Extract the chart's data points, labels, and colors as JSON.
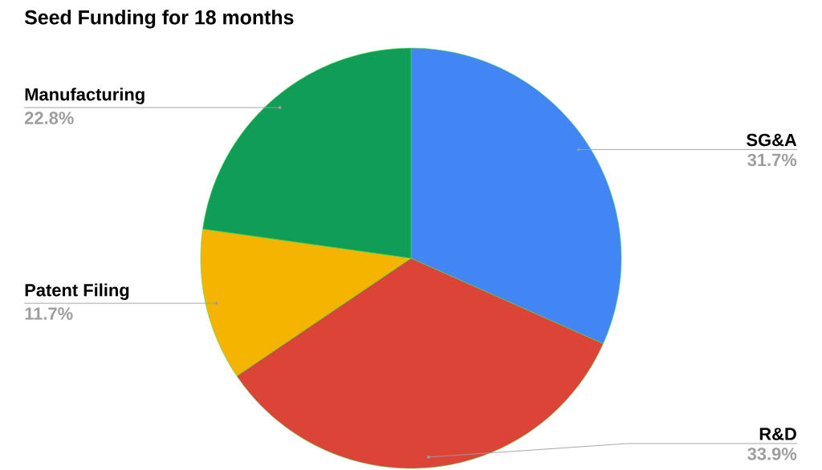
{
  "chart_data": {
    "type": "pie",
    "title": "Seed Funding for 18 months",
    "categories": [
      "SG&A",
      "R&D",
      "Patent Filing",
      "Manufacturing"
    ],
    "values": [
      31.7,
      33.9,
      11.7,
      22.8
    ],
    "colors": [
      "#4285f4",
      "#db4437",
      "#f4b400",
      "#0f9d58"
    ],
    "value_labels": [
      "31.7%",
      "33.9%",
      "11.7%",
      "22.8%"
    ]
  }
}
